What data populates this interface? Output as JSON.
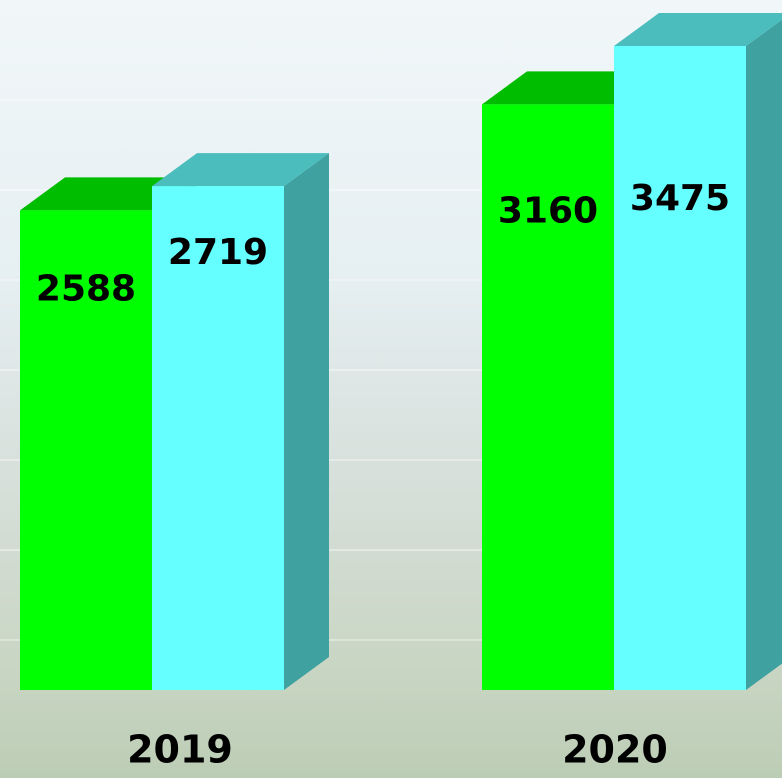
{
  "chart_data": {
    "type": "bar3d",
    "categories": [
      "2019",
      "2020"
    ],
    "series": [
      {
        "color": "#00ff00",
        "values": [
          2588,
          3160
        ]
      },
      {
        "color": "#66ffff",
        "values": [
          2719,
          3475
        ]
      }
    ]
  }
}
